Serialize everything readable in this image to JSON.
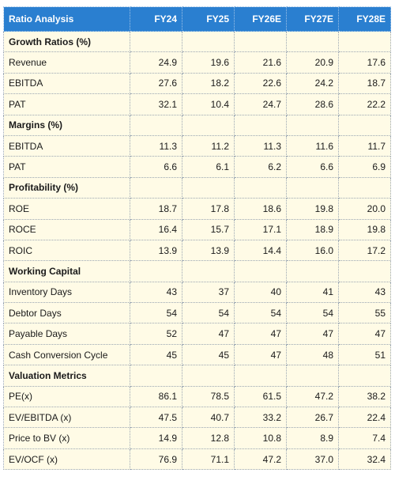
{
  "table": {
    "header": [
      "Ratio Analysis",
      "FY24",
      "FY25",
      "FY26E",
      "FY27E",
      "FY28E"
    ],
    "rows": [
      {
        "type": "section",
        "label": "Growth Ratios (%)"
      },
      {
        "type": "data",
        "label": "Revenue",
        "values": [
          "24.9",
          "19.6",
          "21.6",
          "20.9",
          "17.6"
        ]
      },
      {
        "type": "data",
        "label": "EBITDA",
        "values": [
          "27.6",
          "18.2",
          "22.6",
          "24.2",
          "18.7"
        ]
      },
      {
        "type": "data",
        "label": "PAT",
        "values": [
          "32.1",
          "10.4",
          "24.7",
          "28.6",
          "22.2"
        ]
      },
      {
        "type": "section",
        "label": "Margins (%)"
      },
      {
        "type": "data",
        "label": "EBITDA",
        "values": [
          "11.3",
          "11.2",
          "11.3",
          "11.6",
          "11.7"
        ]
      },
      {
        "type": "data",
        "label": "PAT",
        "values": [
          "6.6",
          "6.1",
          "6.2",
          "6.6",
          "6.9"
        ]
      },
      {
        "type": "section",
        "label": "Profitability (%)"
      },
      {
        "type": "data",
        "label": "ROE",
        "values": [
          "18.7",
          "17.8",
          "18.6",
          "19.8",
          "20.0"
        ]
      },
      {
        "type": "data",
        "label": "ROCE",
        "values": [
          "16.4",
          "15.7",
          "17.1",
          "18.9",
          "19.8"
        ]
      },
      {
        "type": "data",
        "label": "ROIC",
        "values": [
          "13.9",
          "13.9",
          "14.4",
          "16.0",
          "17.2"
        ]
      },
      {
        "type": "section",
        "label": "Working Capital"
      },
      {
        "type": "data",
        "label": "Inventory Days",
        "values": [
          "43",
          "37",
          "40",
          "41",
          "43"
        ]
      },
      {
        "type": "data",
        "label": "Debtor Days",
        "values": [
          "54",
          "54",
          "54",
          "54",
          "55"
        ]
      },
      {
        "type": "data",
        "label": "Payable Days",
        "values": [
          "52",
          "47",
          "47",
          "47",
          "47"
        ]
      },
      {
        "type": "data",
        "label": "Cash Conversion Cycle",
        "values": [
          "45",
          "45",
          "47",
          "48",
          "51"
        ]
      },
      {
        "type": "section",
        "label": "Valuation Metrics"
      },
      {
        "type": "data",
        "label": "PE(x)",
        "values": [
          "86.1",
          "78.5",
          "61.5",
          "47.2",
          "38.2"
        ]
      },
      {
        "type": "data",
        "label": "EV/EBITDA (x)",
        "values": [
          "47.5",
          "40.7",
          "33.2",
          "26.7",
          "22.4"
        ]
      },
      {
        "type": "data",
        "label": "Price to BV (x)",
        "values": [
          "14.9",
          "12.8",
          "10.8",
          "8.9",
          "7.4"
        ]
      },
      {
        "type": "data",
        "label": "EV/OCF (x)",
        "values": [
          "76.9",
          "71.1",
          "47.2",
          "37.0",
          "32.4"
        ]
      }
    ]
  },
  "colors": {
    "header_bg": "#2a7fd0",
    "header_text": "#ffffff",
    "body_bg": "#fffbe6"
  }
}
